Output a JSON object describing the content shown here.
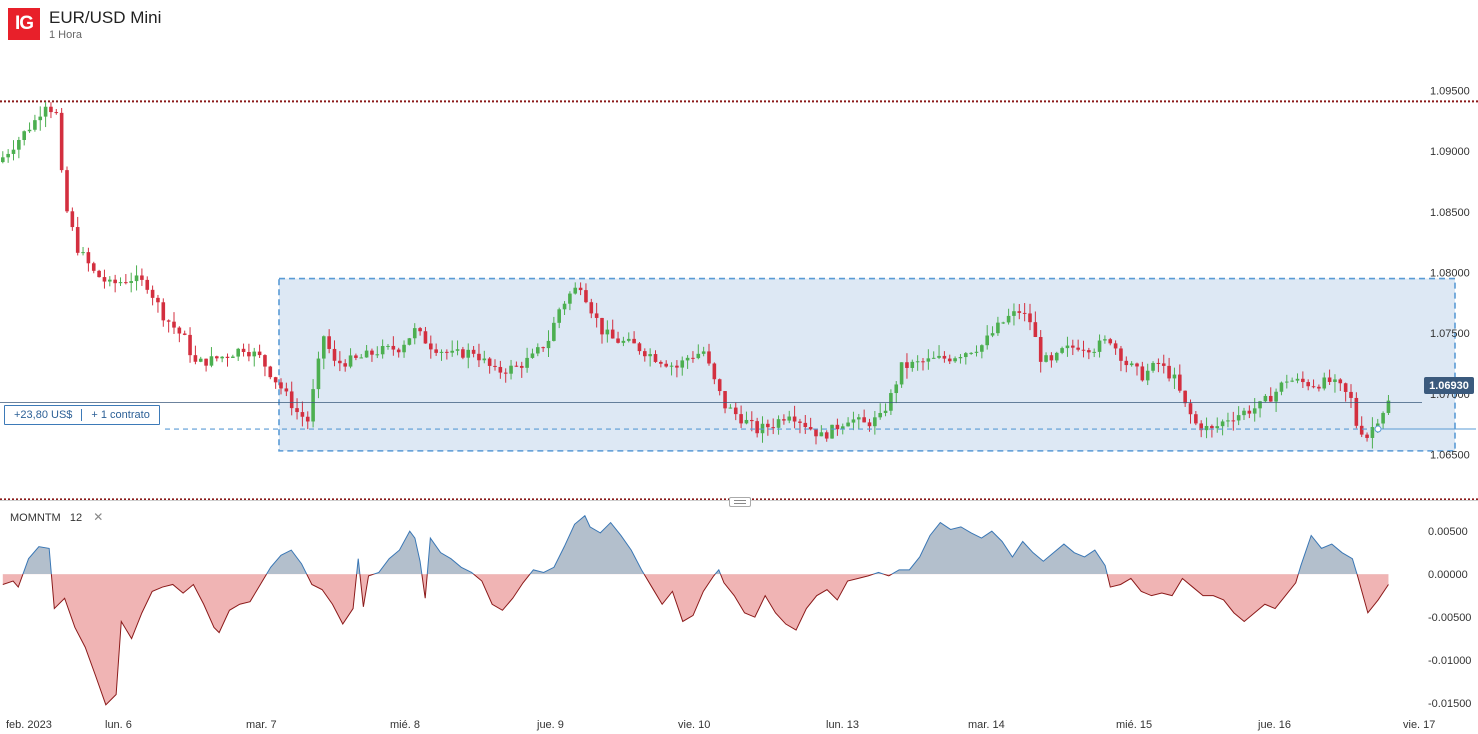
{
  "header": {
    "logo_text": "IG",
    "title": "EUR/USD Mini",
    "subtitle": "1 Hora"
  },
  "position": {
    "pnl": "+23,80 US$",
    "contracts": "+ 1 contrato"
  },
  "current_price": {
    "label": "1.06930",
    "value": 1.0693
  },
  "indicator": {
    "name": "MOMNTM",
    "period": "12",
    "close_symbol": "✕"
  },
  "colors": {
    "up": "#4caf50",
    "down": "#d32f3f",
    "box_fill": "#dde8f4",
    "box_stroke": "#5a9bd5",
    "mom_positive": "#b3bfcc",
    "mom_negative": "#f0b4b4"
  },
  "chart_data": [
    {
      "type": "candlestick",
      "title": "EUR/USD Mini",
      "ylim": [
        1.0615,
        1.0985
      ],
      "y_ticks": [
        "1.09500",
        "1.09000",
        "1.08500",
        "1.08000",
        "1.07500",
        "1.07000",
        "1.06500"
      ],
      "y_tick_values": [
        1.095,
        1.09,
        1.085,
        1.08,
        1.075,
        1.07,
        1.065
      ],
      "x_ticks": [
        "feb. 2023",
        "lun. 6",
        "mar. 7",
        "mié. 8",
        "jue. 9",
        "vie. 10",
        "lun. 13",
        "mar. 14",
        "mié. 15",
        "jue. 16",
        "vie. 17"
      ],
      "range_box": {
        "top": 1.0795,
        "bottom": 1.0653
      },
      "resistance_level": 1.0941,
      "support_level": 1.0613,
      "position_level": 1.0671,
      "close_path": [
        [
          0,
          1.0895
        ],
        [
          6,
          1.0925
        ],
        [
          8,
          1.094
        ],
        [
          10,
          1.093
        ],
        [
          11,
          1.088
        ],
        [
          12,
          1.085
        ],
        [
          14,
          1.082
        ],
        [
          17,
          1.08
        ],
        [
          20,
          1.079
        ],
        [
          24,
          1.0795
        ],
        [
          27,
          1.079
        ],
        [
          30,
          1.0765
        ],
        [
          34,
          1.0745
        ],
        [
          36,
          1.0725
        ],
        [
          39,
          1.0728
        ],
        [
          42,
          1.0732
        ],
        [
          45,
          1.0738
        ],
        [
          48,
          1.073
        ],
        [
          52,
          1.0705
        ],
        [
          55,
          1.0685
        ],
        [
          57,
          1.0678
        ],
        [
          60,
          1.0748
        ],
        [
          62,
          1.0725
        ],
        [
          66,
          1.0728
        ],
        [
          70,
          1.0735
        ],
        [
          74,
          1.0738
        ],
        [
          77,
          1.0752
        ],
        [
          80,
          1.074
        ],
        [
          84,
          1.0732
        ],
        [
          88,
          1.0735
        ],
        [
          92,
          1.0718
        ],
        [
          96,
          1.0722
        ],
        [
          99,
          1.073
        ],
        [
          102,
          1.0745
        ],
        [
          104,
          1.077
        ],
        [
          106,
          1.0782
        ],
        [
          108,
          1.079
        ],
        [
          110,
          1.077
        ],
        [
          112,
          1.0752
        ],
        [
          114,
          1.0745
        ],
        [
          118,
          1.074
        ],
        [
          122,
          1.073
        ],
        [
          126,
          1.0722
        ],
        [
          128,
          1.073
        ],
        [
          131,
          1.0735
        ],
        [
          133,
          1.071
        ],
        [
          135,
          1.069
        ],
        [
          138,
          1.068
        ],
        [
          141,
          1.067
        ],
        [
          144,
          1.0675
        ],
        [
          147,
          1.0685
        ],
        [
          150,
          1.0675
        ],
        [
          153,
          1.0665
        ],
        [
          155,
          1.067
        ],
        [
          158,
          1.068
        ],
        [
          161,
          1.0675
        ],
        [
          164,
          1.068
        ],
        [
          166,
          1.0698
        ],
        [
          168,
          1.0722
        ],
        [
          171,
          1.0725
        ],
        [
          174,
          1.0728
        ],
        [
          177,
          1.073
        ],
        [
          180,
          1.0735
        ],
        [
          183,
          1.074
        ],
        [
          186,
          1.0755
        ],
        [
          188,
          1.0763
        ],
        [
          190,
          1.0768
        ],
        [
          192,
          1.076
        ],
        [
          194,
          1.073
        ],
        [
          196,
          1.0725
        ],
        [
          198,
          1.0735
        ],
        [
          201,
          1.074
        ],
        [
          204,
          1.0738
        ],
        [
          207,
          1.0745
        ],
        [
          210,
          1.0725
        ],
        [
          213,
          1.0715
        ],
        [
          216,
          1.0725
        ],
        [
          219,
          1.0712
        ],
        [
          221,
          1.069
        ],
        [
          223,
          1.0675
        ],
        [
          226,
          1.067
        ],
        [
          229,
          1.068
        ],
        [
          232,
          1.0685
        ],
        [
          235,
          1.069
        ],
        [
          238,
          1.0702
        ],
        [
          240,
          1.0712
        ],
        [
          242,
          1.071
        ],
        [
          245,
          1.0708
        ],
        [
          248,
          1.071
        ],
        [
          250,
          1.0705
        ],
        [
          252,
          1.0695
        ],
        [
          253,
          1.0675
        ],
        [
          255,
          1.0665
        ],
        [
          257,
          1.068
        ],
        [
          259,
          1.0693
        ]
      ]
    },
    {
      "type": "area",
      "title": "MOMNTM 12",
      "ylim": [
        -0.0158,
        0.0063
      ],
      "y_ticks": [
        "0.00500",
        "0.00000",
        "-0.00500",
        "-0.01000",
        "-0.01500"
      ],
      "y_tick_values": [
        0.005,
        0.0,
        -0.005,
        -0.01,
        -0.015
      ],
      "baseline": 0.0,
      "values": [
        [
          0,
          -0.0012
        ],
        [
          2,
          -0.0008
        ],
        [
          3,
          -0.0015
        ],
        [
          5,
          0.0018
        ],
        [
          7,
          0.0032
        ],
        [
          9,
          0.003
        ],
        [
          10,
          -0.004
        ],
        [
          12,
          -0.0028
        ],
        [
          14,
          -0.0062
        ],
        [
          16,
          -0.0085
        ],
        [
          18,
          -0.0118
        ],
        [
          20,
          -0.0152
        ],
        [
          22,
          -0.014
        ],
        [
          23,
          -0.0055
        ],
        [
          25,
          -0.0075
        ],
        [
          27,
          -0.0045
        ],
        [
          29,
          -0.002
        ],
        [
          31,
          -0.0015
        ],
        [
          33,
          -0.0012
        ],
        [
          35,
          -0.0022
        ],
        [
          37,
          -0.0012
        ],
        [
          39,
          -0.0035
        ],
        [
          41,
          -0.0062
        ],
        [
          42,
          -0.0068
        ],
        [
          44,
          -0.0042
        ],
        [
          46,
          -0.0035
        ],
        [
          48,
          -0.0032
        ],
        [
          50,
          -0.0012
        ],
        [
          52,
          0.0008
        ],
        [
          54,
          0.0022
        ],
        [
          56,
          0.0028
        ],
        [
          58,
          0.0012
        ],
        [
          60,
          -0.0012
        ],
        [
          62,
          -0.0018
        ],
        [
          64,
          -0.0035
        ],
        [
          66,
          -0.0058
        ],
        [
          68,
          -0.004
        ],
        [
          69,
          0.0018
        ],
        [
          70,
          -0.0038
        ],
        [
          71,
          -0.0002
        ],
        [
          73,
          0.0002
        ],
        [
          75,
          0.0018
        ],
        [
          77,
          0.0028
        ],
        [
          79,
          0.005
        ],
        [
          80,
          0.0042
        ],
        [
          81,
          0.0015
        ],
        [
          82,
          -0.0028
        ],
        [
          83,
          0.0042
        ],
        [
          85,
          0.0025
        ],
        [
          87,
          0.0018
        ],
        [
          89,
          0.0008
        ],
        [
          91,
          0.0002
        ],
        [
          93,
          -0.0008
        ],
        [
          95,
          -0.0035
        ],
        [
          97,
          -0.0042
        ],
        [
          99,
          -0.0028
        ],
        [
          101,
          -0.001
        ],
        [
          103,
          0.0005
        ],
        [
          105,
          0.0002
        ],
        [
          107,
          0.0008
        ],
        [
          109,
          0.0032
        ],
        [
          111,
          0.0058
        ],
        [
          113,
          0.0068
        ],
        [
          114,
          0.0055
        ],
        [
          116,
          0.0048
        ],
        [
          118,
          0.006
        ],
        [
          120,
          0.0045
        ],
        [
          122,
          0.0028
        ],
        [
          124,
          0.0005
        ],
        [
          126,
          -0.0015
        ],
        [
          128,
          -0.0035
        ],
        [
          130,
          -0.002
        ],
        [
          132,
          -0.0055
        ],
        [
          134,
          -0.0048
        ],
        [
          136,
          -0.002
        ],
        [
          138,
          -0.0002
        ],
        [
          139,
          0.0005
        ],
        [
          140,
          -0.001
        ],
        [
          142,
          -0.0025
        ],
        [
          144,
          -0.0045
        ],
        [
          146,
          -0.005
        ],
        [
          148,
          -0.0025
        ],
        [
          150,
          -0.0045
        ],
        [
          152,
          -0.0058
        ],
        [
          154,
          -0.0065
        ],
        [
          156,
          -0.004
        ],
        [
          158,
          -0.0025
        ],
        [
          160,
          -0.0018
        ],
        [
          162,
          -0.003
        ],
        [
          164,
          -0.0008
        ],
        [
          166,
          -0.0005
        ],
        [
          168,
          -0.0002
        ],
        [
          170,
          0.0002
        ],
        [
          172,
          -0.0002
        ],
        [
          174,
          0.0005
        ],
        [
          176,
          0.0005
        ],
        [
          178,
          0.002
        ],
        [
          180,
          0.0045
        ],
        [
          182,
          0.006
        ],
        [
          184,
          0.0052
        ],
        [
          186,
          0.0055
        ],
        [
          188,
          0.0048
        ],
        [
          190,
          0.0042
        ],
        [
          192,
          0.005
        ],
        [
          194,
          0.0038
        ],
        [
          196,
          0.002
        ],
        [
          198,
          0.0038
        ],
        [
          200,
          0.0025
        ],
        [
          202,
          0.0015
        ],
        [
          204,
          0.0025
        ],
        [
          206,
          0.0035
        ],
        [
          208,
          0.0025
        ],
        [
          210,
          0.002
        ],
        [
          212,
          0.0028
        ],
        [
          214,
          0.001
        ],
        [
          215,
          -0.0015
        ],
        [
          217,
          -0.0012
        ],
        [
          219,
          -0.0005
        ],
        [
          221,
          -0.002
        ],
        [
          223,
          -0.0025
        ],
        [
          225,
          -0.0022
        ],
        [
          227,
          -0.0025
        ],
        [
          229,
          -0.0005
        ],
        [
          231,
          -0.0015
        ],
        [
          233,
          -0.0025
        ],
        [
          235,
          -0.0025
        ],
        [
          237,
          -0.003
        ],
        [
          239,
          -0.0045
        ],
        [
          241,
          -0.0055
        ],
        [
          243,
          -0.0045
        ],
        [
          245,
          -0.0035
        ],
        [
          247,
          -0.004
        ],
        [
          249,
          -0.0025
        ],
        [
          251,
          -0.001
        ],
        [
          252,
          0.001
        ],
        [
          254,
          0.0045
        ],
        [
          256,
          0.003
        ],
        [
          258,
          0.0035
        ],
        [
          260,
          0.0025
        ],
        [
          262,
          0.0018
        ],
        [
          263,
          -0.0002
        ],
        [
          265,
          -0.0045
        ],
        [
          267,
          -0.003
        ],
        [
          269,
          -0.0012
        ]
      ]
    }
  ]
}
